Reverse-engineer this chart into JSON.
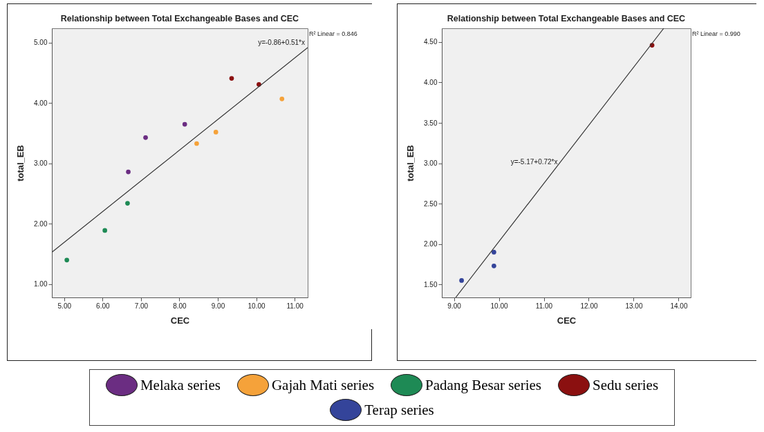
{
  "chart_data": [
    {
      "type": "scatter",
      "title": "Relationship between Total Exchangeable Bases and CEC",
      "xlabel": "CEC",
      "ylabel": "total_EB",
      "marker": "circle",
      "legend": "bottom",
      "xlim": [
        4.68,
        11.34
      ],
      "xticks": [
        {
          "value": 5,
          "label": "5.00"
        },
        {
          "value": 6,
          "label": "6.00"
        },
        {
          "value": 7,
          "label": "7.00"
        },
        {
          "value": 8,
          "label": "8.00"
        },
        {
          "value": 9,
          "label": "9.00"
        },
        {
          "value": 10,
          "label": "10.00"
        },
        {
          "value": 11,
          "label": "11.00"
        }
      ],
      "ylim": [
        0.78,
        5.24
      ],
      "yticks": [
        {
          "value": 1,
          "label": "1.00"
        },
        {
          "value": 2,
          "label": "2.00"
        },
        {
          "value": 3,
          "label": "3.00"
        },
        {
          "value": 4,
          "label": "4.00"
        },
        {
          "value": 5,
          "label": "5.00"
        }
      ],
      "annotations": [
        "y=-0.86+0.51*x",
        "R² Linear = 0.846"
      ],
      "series": [
        {
          "name": "Melaka series",
          "color": "#6b2d82",
          "x": [
            6.67,
            7.12,
            8.14
          ],
          "values": [
            2.86,
            3.43,
            3.65
          ]
        },
        {
          "name": "Gajah Mati series",
          "color": "#f5a23a",
          "x": [
            8.45,
            8.95,
            10.67
          ],
          "values": [
            3.33,
            3.52,
            4.07
          ]
        },
        {
          "name": "Padang Besar series",
          "color": "#1e8a55",
          "x": [
            5.07,
            6.06,
            6.65
          ],
          "values": [
            1.4,
            1.89,
            2.34
          ]
        },
        {
          "name": "Sedu series",
          "color": "#8b1010",
          "x": [
            9.36,
            10.07
          ],
          "values": [
            4.41,
            4.31
          ]
        },
        {
          "type": "line",
          "marker": "none",
          "color": "#333333",
          "x": [
            4.68,
            11.34
          ],
          "values": [
            1.53,
            4.92
          ]
        }
      ]
    },
    {
      "type": "scatter",
      "title": "Relationship between Total Exchangeable Bases and CEC",
      "xlabel": "CEC",
      "ylabel": "total_EB",
      "marker": "circle",
      "legend": "bottom",
      "xlim": [
        8.73,
        14.27
      ],
      "xticks": [
        {
          "value": 9,
          "label": "9.00"
        },
        {
          "value": 10,
          "label": "10.00"
        },
        {
          "value": 11,
          "label": "11.00"
        },
        {
          "value": 12,
          "label": "12.00"
        },
        {
          "value": 13,
          "label": "13.00"
        },
        {
          "value": 14,
          "label": "14.00"
        }
      ],
      "ylim": [
        1.34,
        4.67
      ],
      "yticks": [
        {
          "value": 1.5,
          "label": "1.50"
        },
        {
          "value": 2,
          "label": "2.00"
        },
        {
          "value": 2.5,
          "label": "2.50"
        },
        {
          "value": 3,
          "label": "3.00"
        },
        {
          "value": 3.5,
          "label": "3.50"
        },
        {
          "value": 4,
          "label": "4.00"
        },
        {
          "value": 4.5,
          "label": "4.50"
        }
      ],
      "annotations": [
        {
          "text": "y=-5.17+0.72*x",
          "x": 11.4,
          "y": 3.01
        },
        "R² Linear = 0.990"
      ],
      "series": [
        {
          "name": "Terap series",
          "color": "#34449a",
          "x": [
            9.17,
            9.89,
            9.89
          ],
          "values": [
            1.55,
            1.9,
            1.73
          ]
        },
        {
          "name": "Sedu series",
          "color": "#8b1010",
          "x": [
            13.41
          ],
          "values": [
            4.46
          ]
        },
        {
          "type": "line",
          "marker": "none",
          "color": "#333333",
          "x": [
            9.04,
            13.67
          ],
          "values": [
            1.34,
            4.67
          ]
        }
      ]
    }
  ]
}
